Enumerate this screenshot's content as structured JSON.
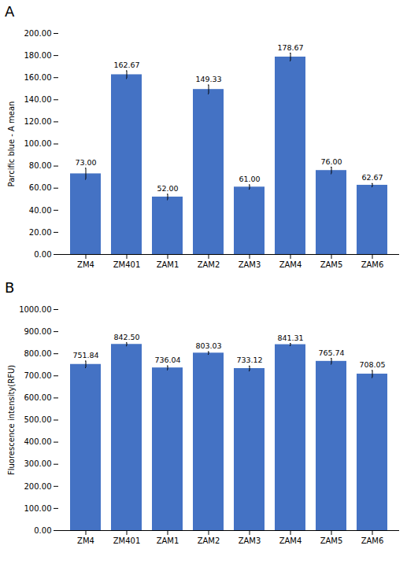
{
  "chart_data": [
    {
      "type": "bar",
      "title": "A",
      "categories": [
        "ZM4",
        "ZM401",
        "ZAM1",
        "ZAM2",
        "ZAM3",
        "ZAM4",
        "ZAM5",
        "ZAM6"
      ],
      "values": [
        73.0,
        162.67,
        52.0,
        149.33,
        61.0,
        178.67,
        76.0,
        62.67
      ],
      "value_labels": [
        "73.00",
        "162.67",
        "52.00",
        "149.33",
        "61.00",
        "178.67",
        "76.00",
        "62.67"
      ],
      "errors": [
        5.0,
        3.5,
        2.5,
        4.0,
        2.0,
        3.5,
        3.0,
        1.5
      ],
      "ylabel": "Parcific blue - A mean",
      "ylim": [
        0,
        200
      ],
      "yticks": [
        {
          "value": 0,
          "label": "0.00"
        },
        {
          "value": 20,
          "label": "20.00"
        },
        {
          "value": 40,
          "label": "40.00"
        },
        {
          "value": 60,
          "label": "60.00"
        },
        {
          "value": 80,
          "label": "80.00"
        },
        {
          "value": 100,
          "label": "100.00"
        },
        {
          "value": 120,
          "label": "120.00"
        },
        {
          "value": 140,
          "label": "140.00"
        },
        {
          "value": 160,
          "label": "160.00"
        },
        {
          "value": 180,
          "label": "180.00"
        },
        {
          "value": 200,
          "label": "200.00"
        }
      ],
      "color": "#4472C4",
      "data_labels": true,
      "grid": false
    },
    {
      "type": "bar",
      "title": "B",
      "categories": [
        "ZM4",
        "ZM401",
        "ZAM1",
        "ZAM2",
        "ZAM3",
        "ZAM4",
        "ZAM5",
        "ZAM6"
      ],
      "values": [
        751.84,
        842.5,
        736.04,
        803.03,
        733.12,
        841.31,
        765.74,
        708.05
      ],
      "value_labels": [
        "751.84",
        "842.50",
        "736.04",
        "803.03",
        "733.12",
        "841.31",
        "765.74",
        "708.05"
      ],
      "errors": [
        15.0,
        7.0,
        9.0,
        6.0,
        11.0,
        5.0,
        13.0,
        16.0
      ],
      "ylabel": "Fluorescence intensity(RFU)",
      "ylim": [
        0,
        1000
      ],
      "yticks": [
        {
          "value": 0,
          "label": "0.00"
        },
        {
          "value": 100,
          "label": "100.00"
        },
        {
          "value": 200,
          "label": "200.00"
        },
        {
          "value": 300,
          "label": "300.00"
        },
        {
          "value": 400,
          "label": "400.00"
        },
        {
          "value": 500,
          "label": "500.00"
        },
        {
          "value": 600,
          "label": "600.00"
        },
        {
          "value": 700,
          "label": "700.00"
        },
        {
          "value": 800,
          "label": "800.00"
        },
        {
          "value": 900,
          "label": "900.00"
        },
        {
          "value": 1000,
          "label": "1000.00"
        }
      ],
      "color": "#4472C4",
      "data_labels": true,
      "grid": false
    }
  ]
}
